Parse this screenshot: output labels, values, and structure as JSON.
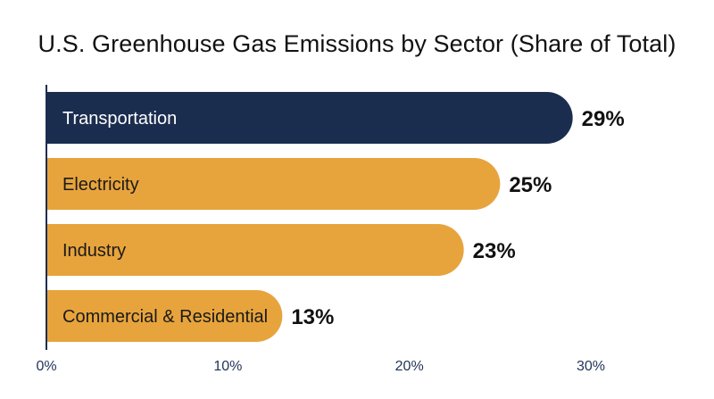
{
  "chart_data": {
    "type": "bar",
    "orientation": "horizontal",
    "title": "U.S. Greenhouse Gas Emissions by Sector (Share of Total)",
    "xlabel": "",
    "ylabel": "",
    "categories": [
      "Transportation",
      "Electricity",
      "Industry",
      "Commercial & Residential"
    ],
    "values": [
      29,
      25,
      23,
      13
    ],
    "value_labels": [
      "29%",
      "25%",
      "23%",
      "13%"
    ],
    "highlight_index": 0,
    "xlim": [
      0,
      30
    ],
    "xticks": [
      0,
      10,
      20,
      30
    ],
    "xtick_labels": [
      "0%",
      "10%",
      "20%",
      "30%"
    ],
    "grid": false,
    "legend": "none",
    "colors": {
      "highlight_bar": "#1b2d4f",
      "bar": "#e8a43c",
      "highlight_text": "#ffffff",
      "bar_text": "#1a1a1a",
      "axis": "#1b2d4f"
    }
  }
}
